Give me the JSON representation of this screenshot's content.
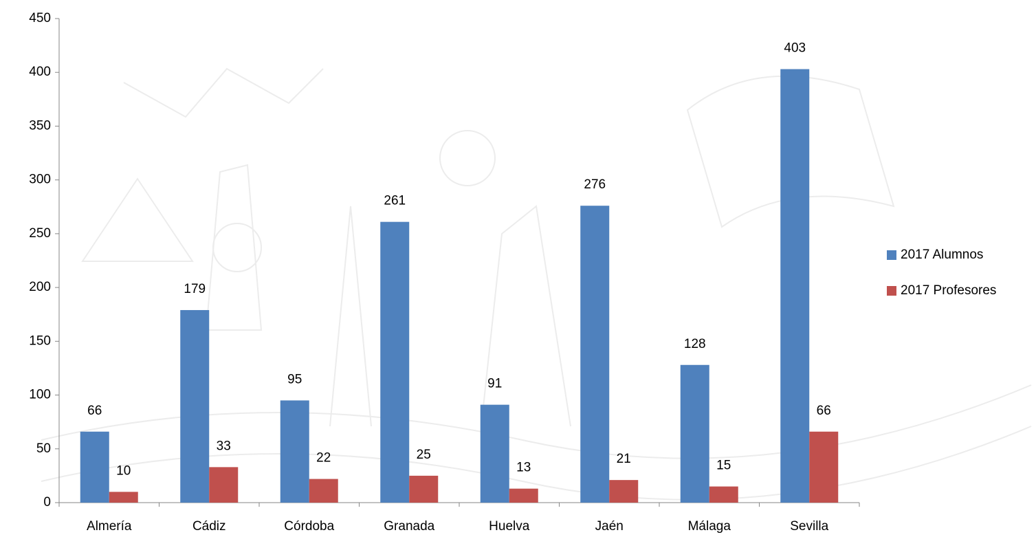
{
  "chart_data": {
    "type": "bar",
    "categories": [
      "Almería",
      "Cádiz",
      "Córdoba",
      "Granada",
      "Huelva",
      "Jaén",
      "Málaga",
      "Sevilla"
    ],
    "series": [
      {
        "name": "2017 Alumnos",
        "color": "#4f81bd",
        "values": [
          66,
          179,
          95,
          261,
          91,
          276,
          128,
          403
        ]
      },
      {
        "name": "2017 Profesores",
        "color": "#c0504d",
        "values": [
          10,
          33,
          22,
          25,
          13,
          21,
          15,
          66
        ]
      }
    ],
    "ylim": [
      0,
      450
    ],
    "yticks": [
      0,
      50,
      100,
      150,
      200,
      250,
      300,
      350,
      400,
      450
    ],
    "grid": false,
    "legend": "right"
  }
}
